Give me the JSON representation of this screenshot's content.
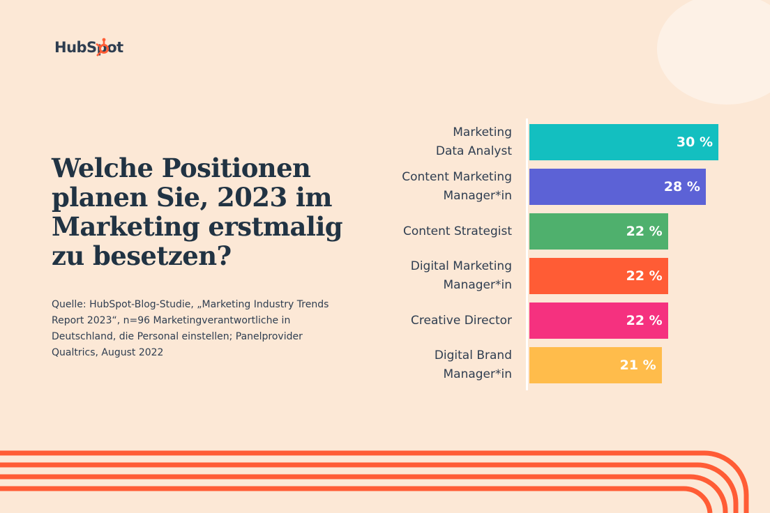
{
  "brand": {
    "logo_text": "HubSpot",
    "color_orange": "#ff5c35",
    "color_navy": "#213343"
  },
  "header": {
    "title": "Welche Positionen planen Sie, 2023 im Marketing erstmalig zu besetzen?",
    "source": "Quelle: HubSpot-Blog-Studie, „Marketing Industry Trends Report 2023“, n=96 Marketingverantwortliche in Deutschland, die Personal einstellen; Panelprovider Qualtrics, August 2022"
  },
  "chart_data": {
    "type": "bar",
    "orientation": "horizontal",
    "categories": [
      "Marketing \nData Analyst",
      "Content Marketing\nManager*in",
      "Content Strategist",
      "Digital Marketing\nManager*in",
      "Creative Director",
      "Digital Brand\nManager*in"
    ],
    "values": [
      30,
      28,
      22,
      22,
      22,
      21
    ],
    "value_labels": [
      "30 %",
      "28 %",
      "22 %",
      "22 %",
      "22 %",
      "21 %"
    ],
    "colors": [
      "#13bfc0",
      "#5c62d6",
      "#4fb06d",
      "#ff5c35",
      "#f5317f",
      "#ffbc4b"
    ],
    "xlim": [
      0,
      30
    ],
    "grid": false,
    "legend": "none"
  }
}
